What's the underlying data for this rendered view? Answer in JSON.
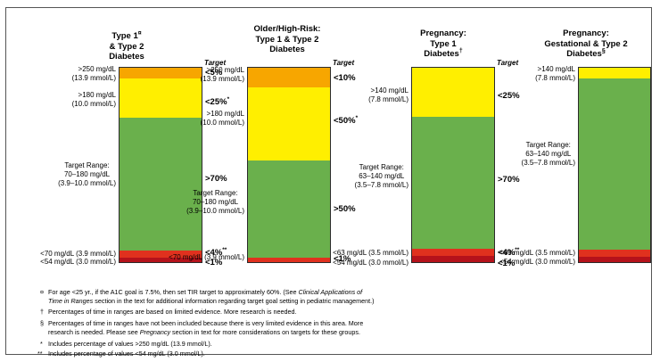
{
  "colors": {
    "very_high": "#f7a600",
    "high": "#ffef00",
    "target": "#6ab04c",
    "low": "#e0311e",
    "very_low": "#b5121b",
    "border": "#2b2b2b"
  },
  "chart_data": [
    {
      "type": "bar",
      "title_lines": [
        "Type 1",
        "& Type 2",
        "Diabetes"
      ],
      "title_mark": "¤",
      "target_label": "Target",
      "segments": [
        {
          "range": ">250 mg/dL",
          "range_mmol": "(13.9 mmol/L)",
          "target": "<5%",
          "mark": "",
          "band": "very_high"
        },
        {
          "range": ">180 mg/dL",
          "range_mmol": "(10.0 mmol/L)",
          "target": "<25%",
          "mark": "*",
          "band": "high"
        },
        {
          "range": "Target Range:",
          "range_2": "70–180 mg/dL",
          "range_mmol": "(3.9–10.0 mmol/L)",
          "target": ">70%",
          "mark": "",
          "band": "target"
        },
        {
          "range": "<70 mg/dL (3.9 mmol/L)",
          "target": "<4%",
          "mark": "**",
          "band": "low"
        },
        {
          "range": "<54 mg/dL (3.0 mmol/L)",
          "target": "<1%",
          "mark": "",
          "band": "very_low"
        }
      ]
    },
    {
      "type": "bar",
      "title_lines": [
        "Older/High-Risk:",
        "Type 1 & Type 2",
        "Diabetes"
      ],
      "target_label": "Target",
      "segments": [
        {
          "range": ">250 mg/dL",
          "range_mmol": "(13.9 mmol/L)",
          "target": "<10%",
          "mark": "",
          "band": "very_high"
        },
        {
          "range": ">180 mg/dL",
          "range_mmol": "(10.0 mmol/L)",
          "target": "<50%",
          "mark": "*",
          "band": "high"
        },
        {
          "range": "Target Range:",
          "range_2": "70–180 mg/dL",
          "range_mmol": "(3.9–10.0 mmol/L)",
          "target": ">50%",
          "mark": "",
          "band": "target"
        },
        {
          "range": "<70 mg/dL (3.9 mmol/L)",
          "target": "<1%",
          "mark": "",
          "band": "low"
        }
      ]
    },
    {
      "type": "bar",
      "title_lines": [
        "Pregnancy:",
        "Type 1",
        "Diabetes"
      ],
      "title_mark": "†",
      "target_label": "Target",
      "segments": [
        {
          "range": ">140 mg/dL",
          "range_mmol": "(7.8 mmol/L)",
          "target": "<25%",
          "mark": "",
          "band": "high"
        },
        {
          "range": "Target Range:",
          "range_2": "63–140 mg/dL",
          "range_mmol": "(3.5–7.8 mmol/L)",
          "target": ">70%",
          "mark": "",
          "band": "target"
        },
        {
          "range": "<63 mg/dL (3.5 mmol/L)",
          "target": "<4%",
          "mark": "**",
          "band": "low"
        },
        {
          "range": "<54 mg/dL (3.0 mmol/L)",
          "target": "<1%",
          "mark": "",
          "band": "very_low"
        }
      ]
    },
    {
      "type": "bar",
      "title_lines": [
        "Pregnancy:",
        "Gestational & Type 2",
        "Diabetes"
      ],
      "title_mark": "§",
      "segments": [
        {
          "range": ">140 mg/dL",
          "range_mmol": "(7.8 mmol/L)",
          "band": "high"
        },
        {
          "range": "Target Range:",
          "range_2": "63–140 mg/dL",
          "range_mmol": "(3.5–7.8 mmol/L)",
          "band": "target"
        },
        {
          "range": "<63 mg/dL (3.5 mmol/L)",
          "band": "low"
        },
        {
          "range": "<54 mg/dL (3.0 mmol/L)",
          "band": "very_low"
        }
      ]
    }
  ],
  "footnotes": [
    {
      "sym": "¤",
      "parts": [
        {
          "t": "For age <25 yr., if the A1C goal is 7.5%, then set TIR target to approximately 60%.  (See "
        },
        {
          "t": "Clinical Applications of",
          "i": true
        }
      ]
    },
    {
      "sym": "",
      "parts": [
        {
          "t": "Time in Ranges",
          "i": true
        },
        {
          "t": " section in the text for additional information regarding target goal setting in pediatric management.)"
        }
      ]
    },
    {
      "sym": "†",
      "parts": [
        {
          "t": "Percentages of time in ranges are based on limited evidence. More research is needed."
        }
      ]
    },
    {
      "sym": "§",
      "parts": [
        {
          "t": "Percentages of time in ranges have not been included because there is very limited evidence in this area.  More"
        }
      ]
    },
    {
      "sym": "",
      "parts": [
        {
          "t": "research is needed. Please see "
        },
        {
          "t": "Pregnancy",
          "i": true
        },
        {
          "t": " section in text for more considerations on targets for these groups."
        }
      ]
    },
    {
      "sym": "*",
      "parts": [
        {
          "t": "Includes percentage of values >250 mg/dL (13.9 mmol/L)."
        }
      ]
    },
    {
      "sym": "**",
      "parts": [
        {
          "t": "Includes percentage of values <54 mg/dL (3.0 mmol/L)."
        }
      ]
    }
  ]
}
